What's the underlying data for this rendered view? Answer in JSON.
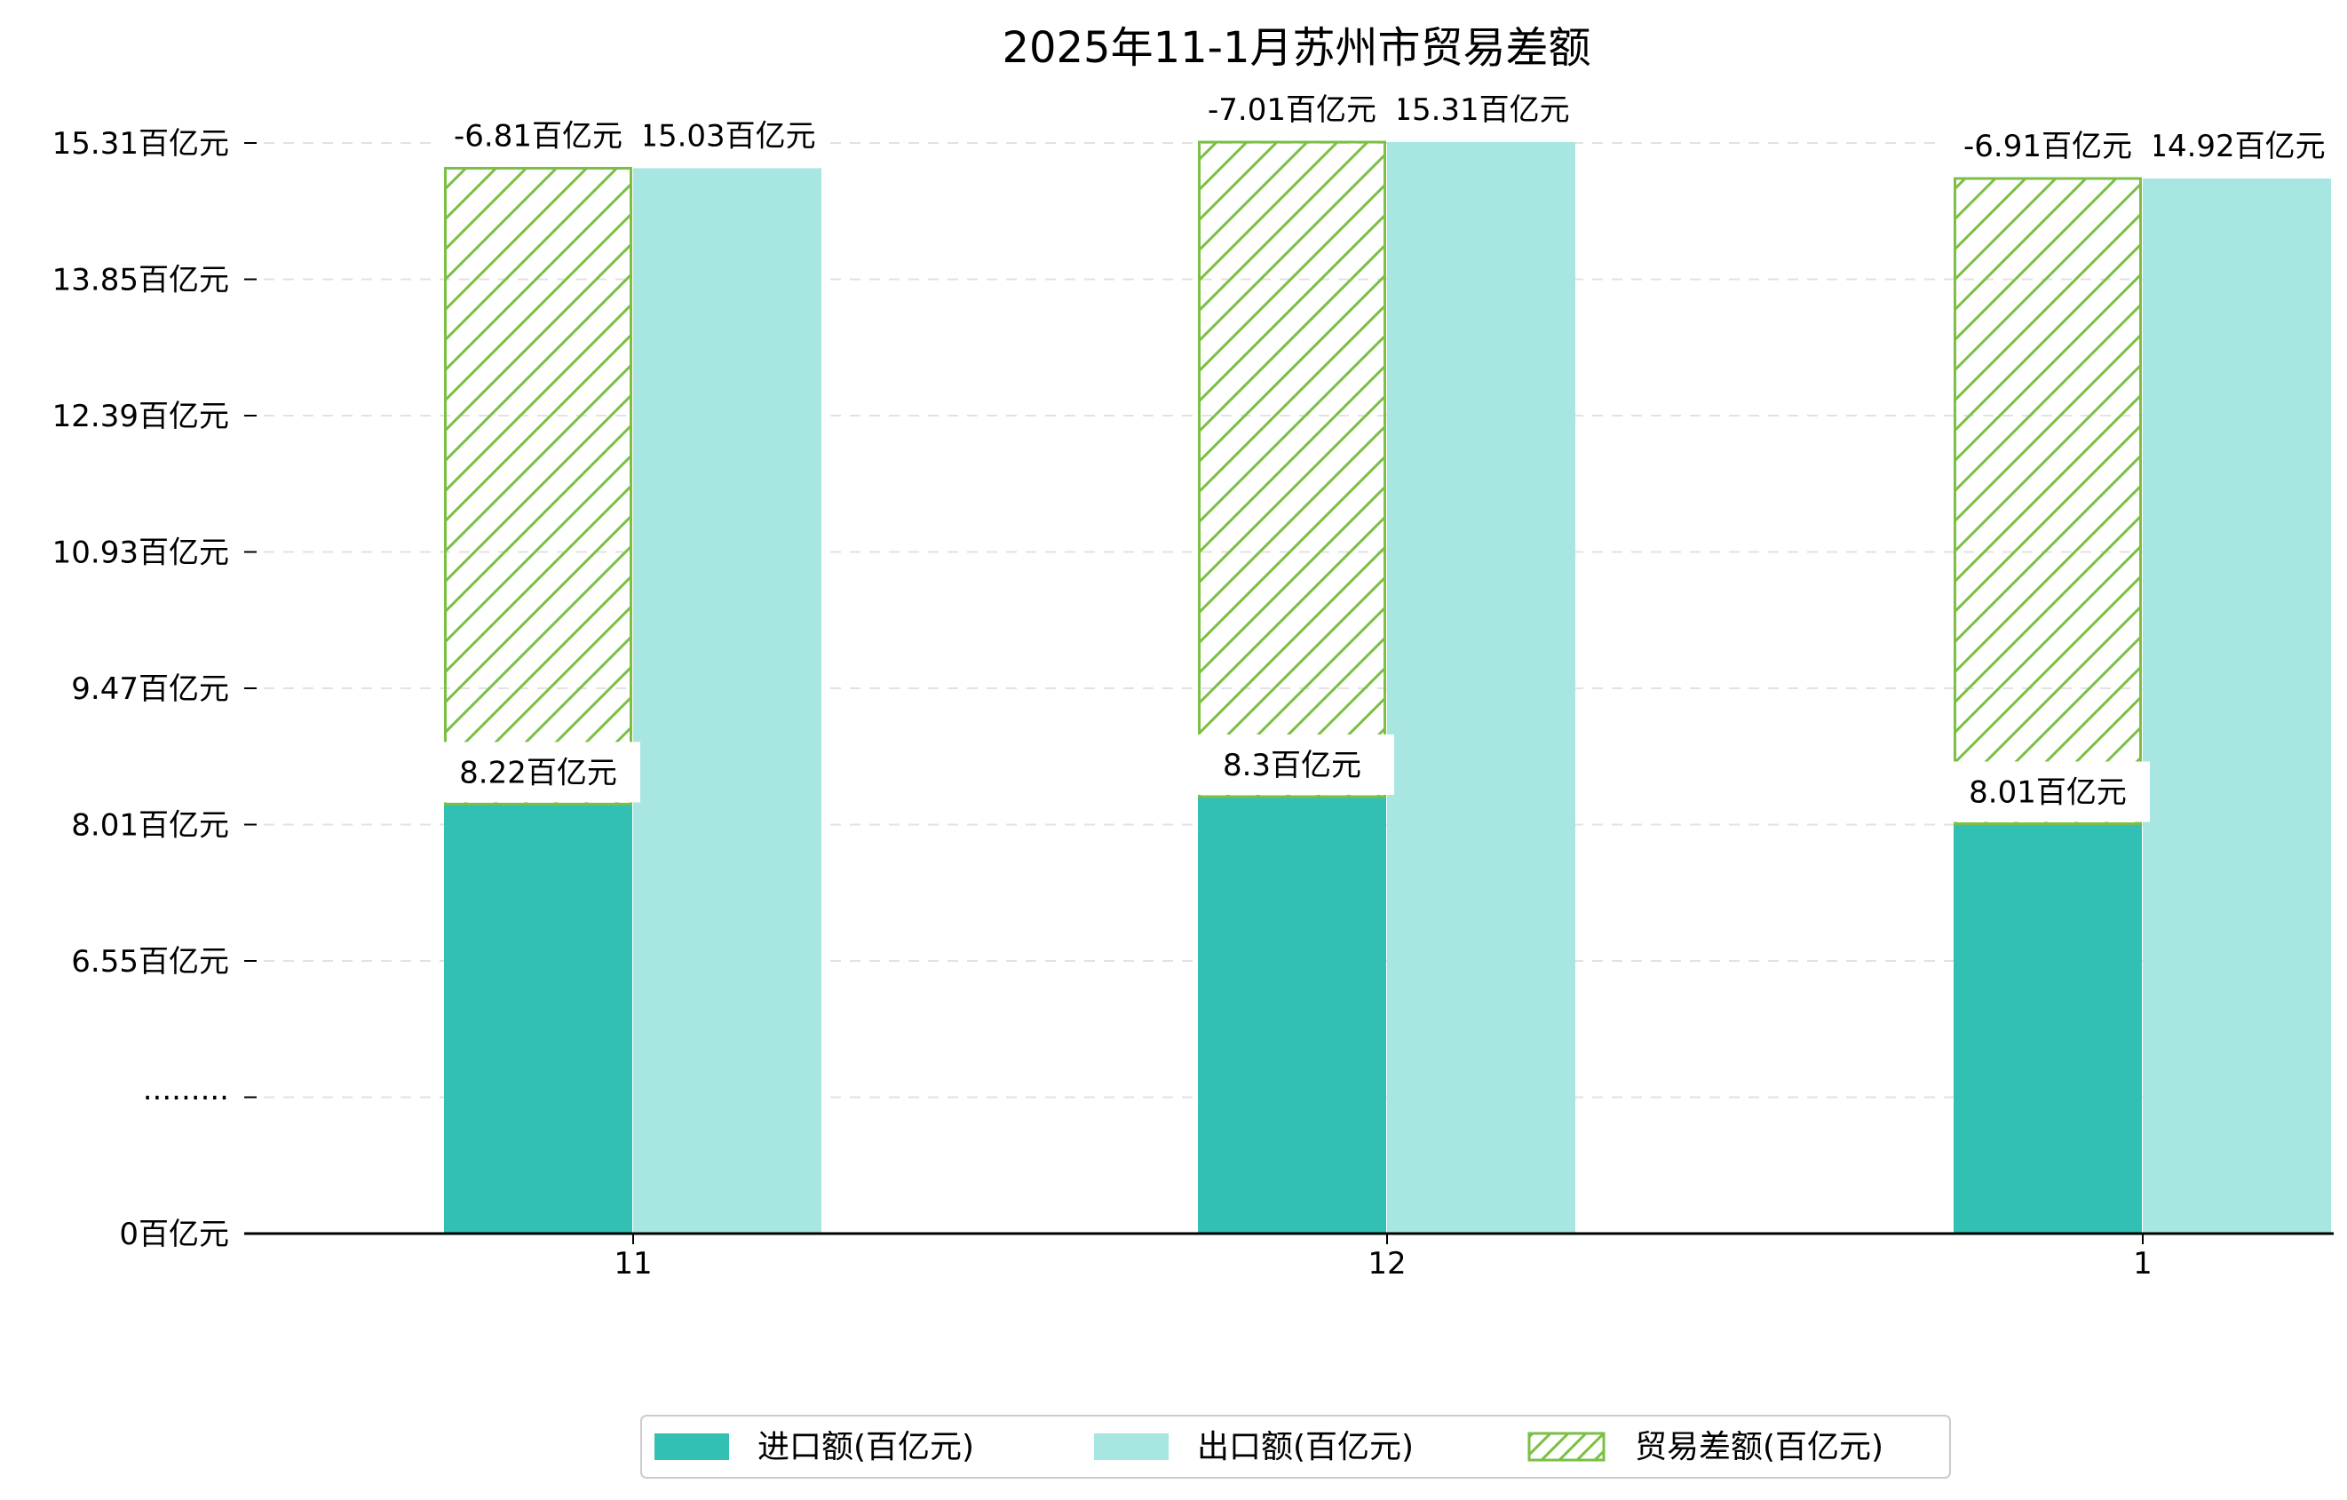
{
  "chart_data": {
    "type": "bar",
    "title": "2025年11-1月苏州市贸易差额",
    "categories": [
      "11",
      "12",
      "1"
    ],
    "ytick_labels": [
      "0百亿元",
      "·········",
      "6.55百亿元",
      "8.01百亿元",
      "9.47百亿元",
      "10.93百亿元",
      "12.39百亿元",
      "13.85百亿元",
      "15.31百亿元"
    ],
    "series": [
      {
        "name": "进口额(百亿元)",
        "values": [
          8.22,
          8.3,
          8.01
        ],
        "labels": [
          "8.22百亿元",
          "8.3百亿元",
          "8.01百亿元"
        ],
        "color": "#31c0b3"
      },
      {
        "name": "出口额(百亿元)",
        "values": [
          15.03,
          15.31,
          14.92
        ],
        "labels": [
          "15.03百亿元",
          "15.31百亿元",
          "14.92百亿元"
        ],
        "color": "#a8e6e1"
      },
      {
        "name": "贸易差额(百亿元)",
        "values": [
          -6.81,
          -7.01,
          -6.91
        ],
        "labels": [
          "-6.81百亿元",
          "-7.01百亿元",
          "-6.91百亿元"
        ],
        "color": "#7bbf44",
        "pattern": "hatch"
      }
    ],
    "grid": true,
    "legend_position": "bottom-center"
  }
}
